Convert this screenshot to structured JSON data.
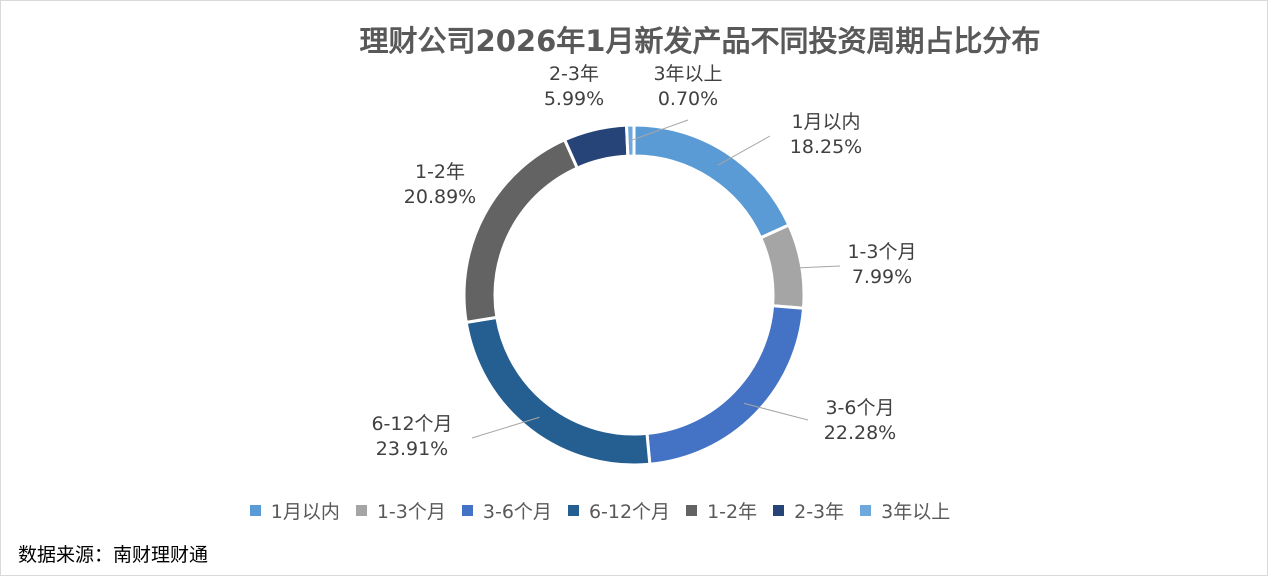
{
  "chart_data": {
    "type": "pie",
    "subtype": "donut",
    "title": "理财公司2026年1月新发产品不同投资周期占比分布",
    "categories": [
      "1月以内",
      "1-3个月",
      "3-6个月",
      "6-12个月",
      "1-2年",
      "2-3年",
      "3年以上"
    ],
    "values": [
      18.25,
      7.99,
      22.28,
      23.91,
      20.89,
      5.99,
      0.7
    ],
    "value_labels": [
      "18.25%",
      "7.99%",
      "22.28%",
      "23.91%",
      "20.89%",
      "5.99%",
      "0.70%"
    ],
    "colors": [
      "#5b9bd5",
      "#a5a5a5",
      "#4472c4",
      "#255e91",
      "#636363",
      "#264478",
      "#6fa8dc"
    ],
    "legend_position": "bottom"
  },
  "source": "数据来源：南财理财通"
}
